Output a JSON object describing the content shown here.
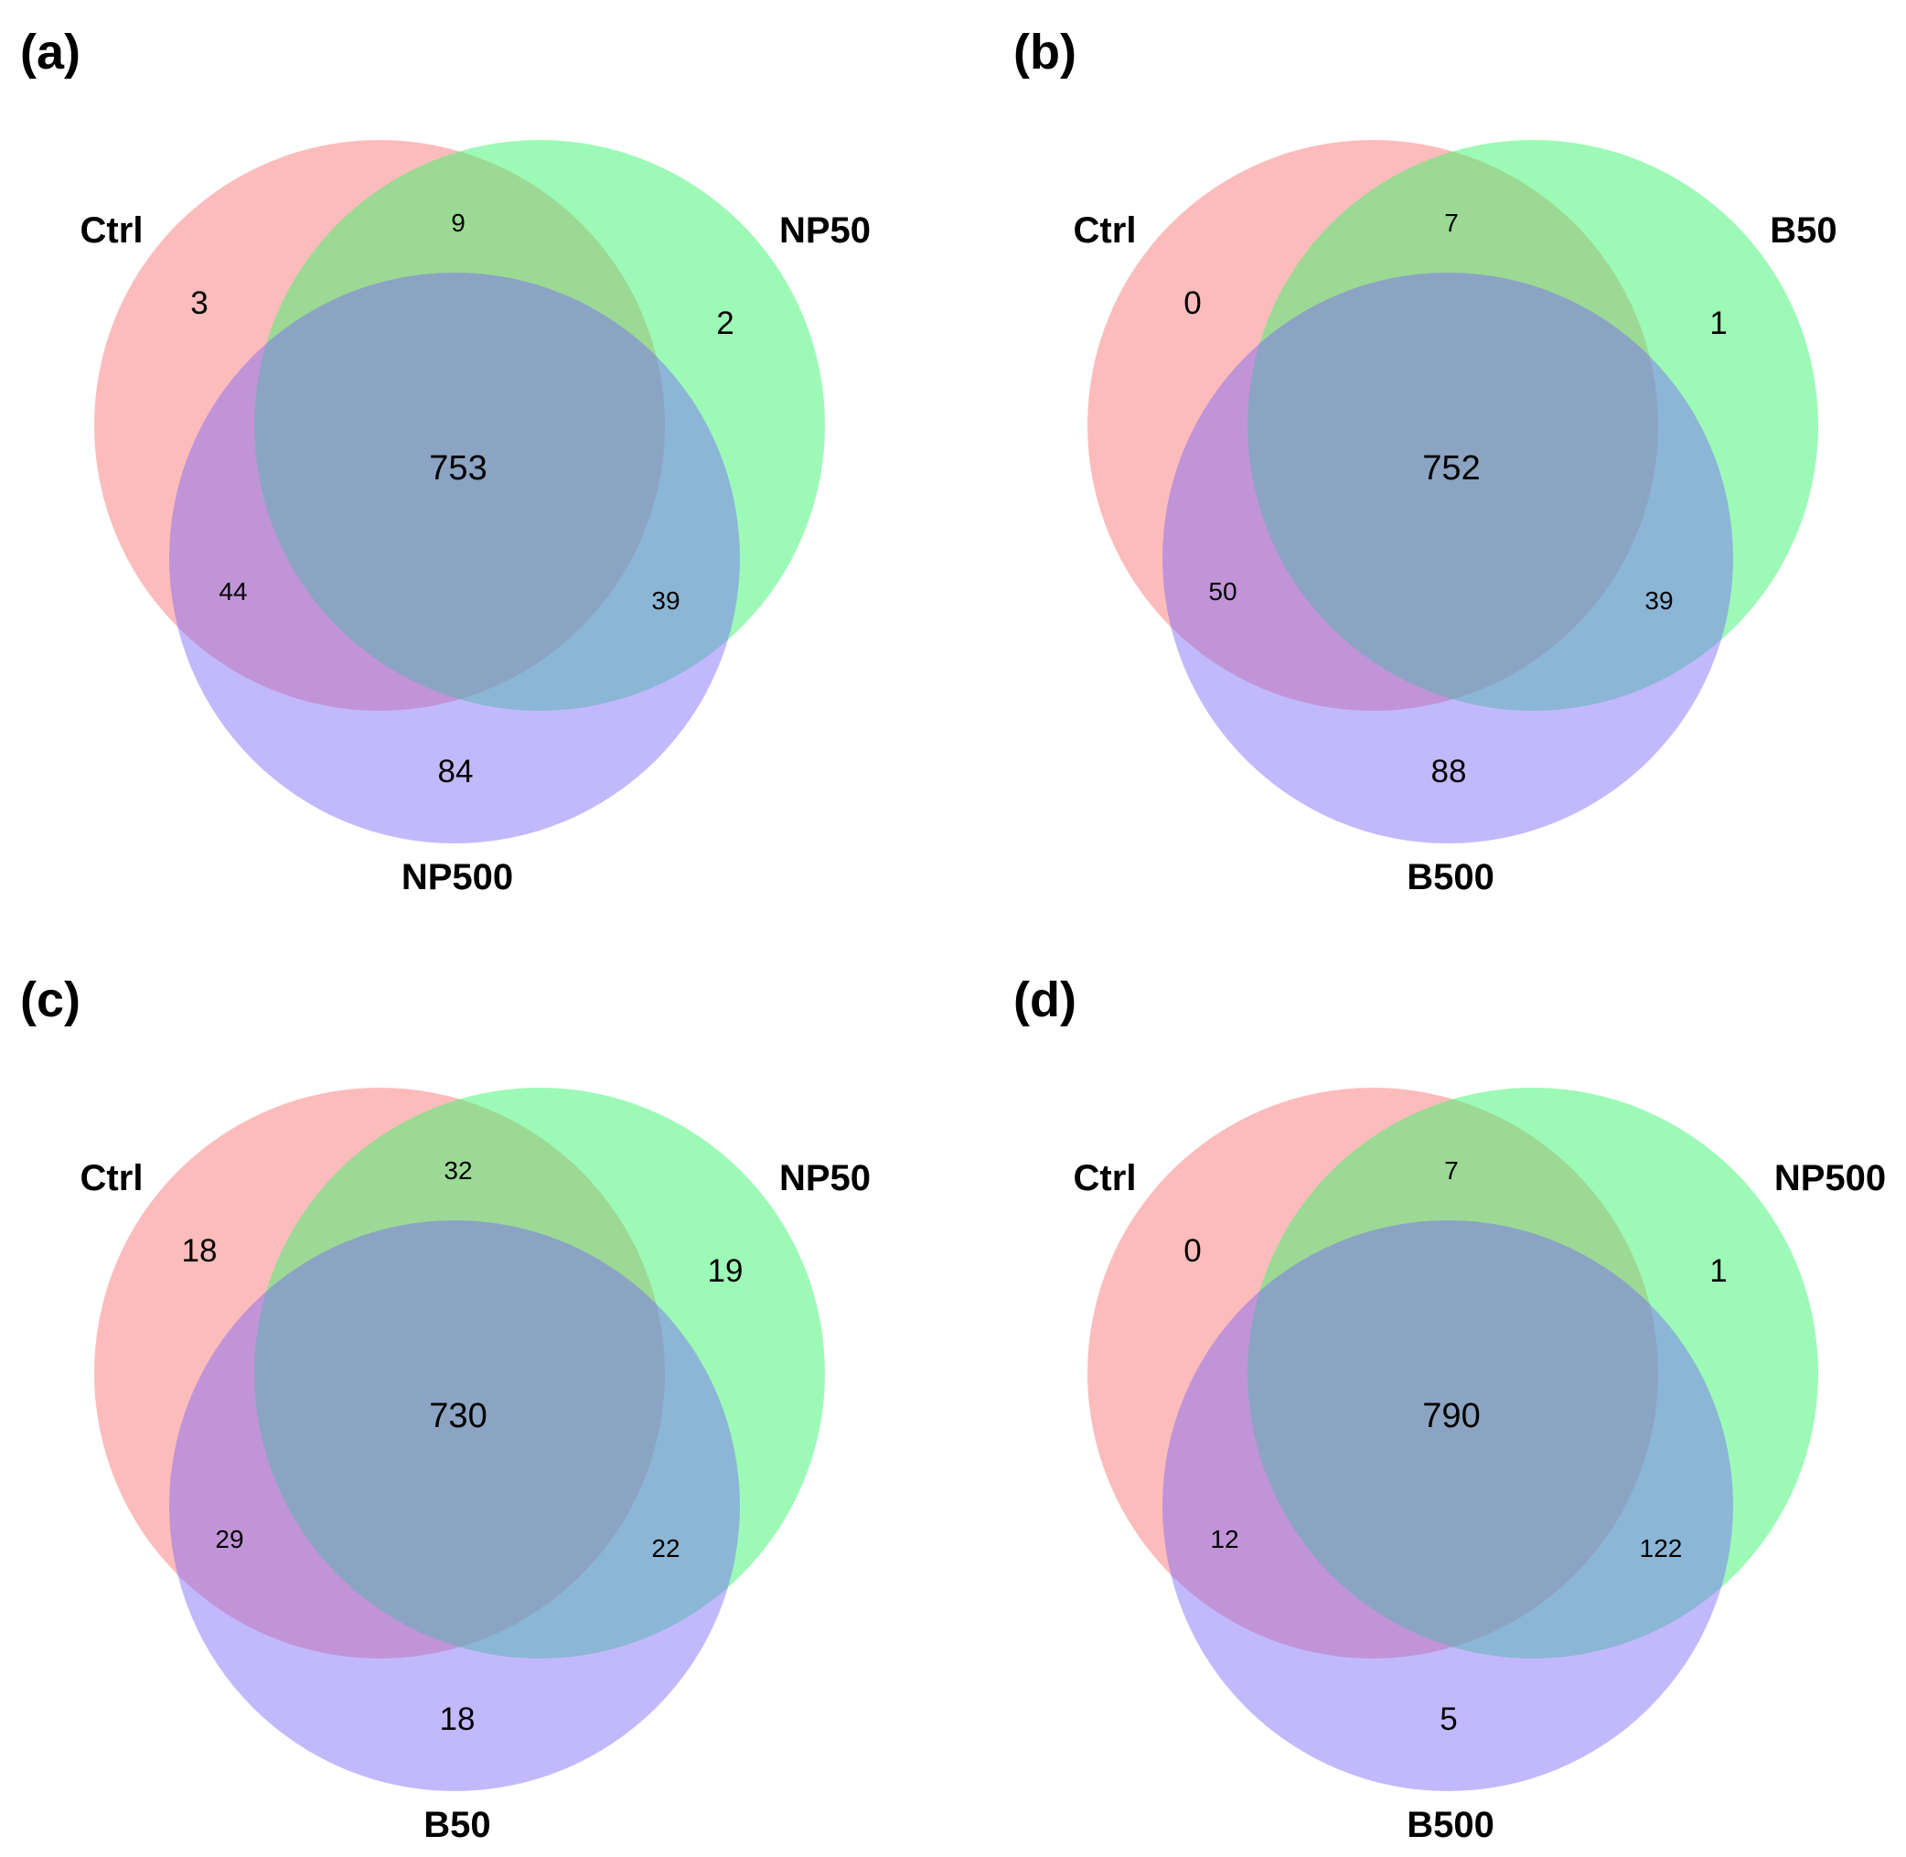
{
  "colors": {
    "set1": "#fa5050",
    "set2": "#3cf56e",
    "set3": "#7864fa"
  },
  "panels": [
    {
      "label": "(a)",
      "sets": [
        "Ctrl",
        "NP50",
        "NP500"
      ],
      "counts": {
        "only1": "3",
        "only2": "2",
        "only3": "84",
        "s12": "9",
        "s13": "44",
        "s23": "39",
        "s123": "753"
      }
    },
    {
      "label": "(b)",
      "sets": [
        "Ctrl",
        "B50",
        "B500"
      ],
      "counts": {
        "only1": "0",
        "only2": "1",
        "only3": "88",
        "s12": "7",
        "s13": "50",
        "s23": "39",
        "s123": "752"
      }
    },
    {
      "label": "(c)",
      "sets": [
        "Ctrl",
        "NP50",
        "B50"
      ],
      "counts": {
        "only1": "18",
        "only2": "19",
        "only3": "18",
        "s12": "32",
        "s13": "29",
        "s23": "22",
        "s123": "730"
      }
    },
    {
      "label": "(d)",
      "sets": [
        "Ctrl",
        "NP500",
        "B500"
      ],
      "counts": {
        "only1": "0",
        "only2": "1",
        "only3": "5",
        "s12": "7",
        "s13": "12",
        "s23": "122",
        "s123": "790"
      }
    }
  ]
}
